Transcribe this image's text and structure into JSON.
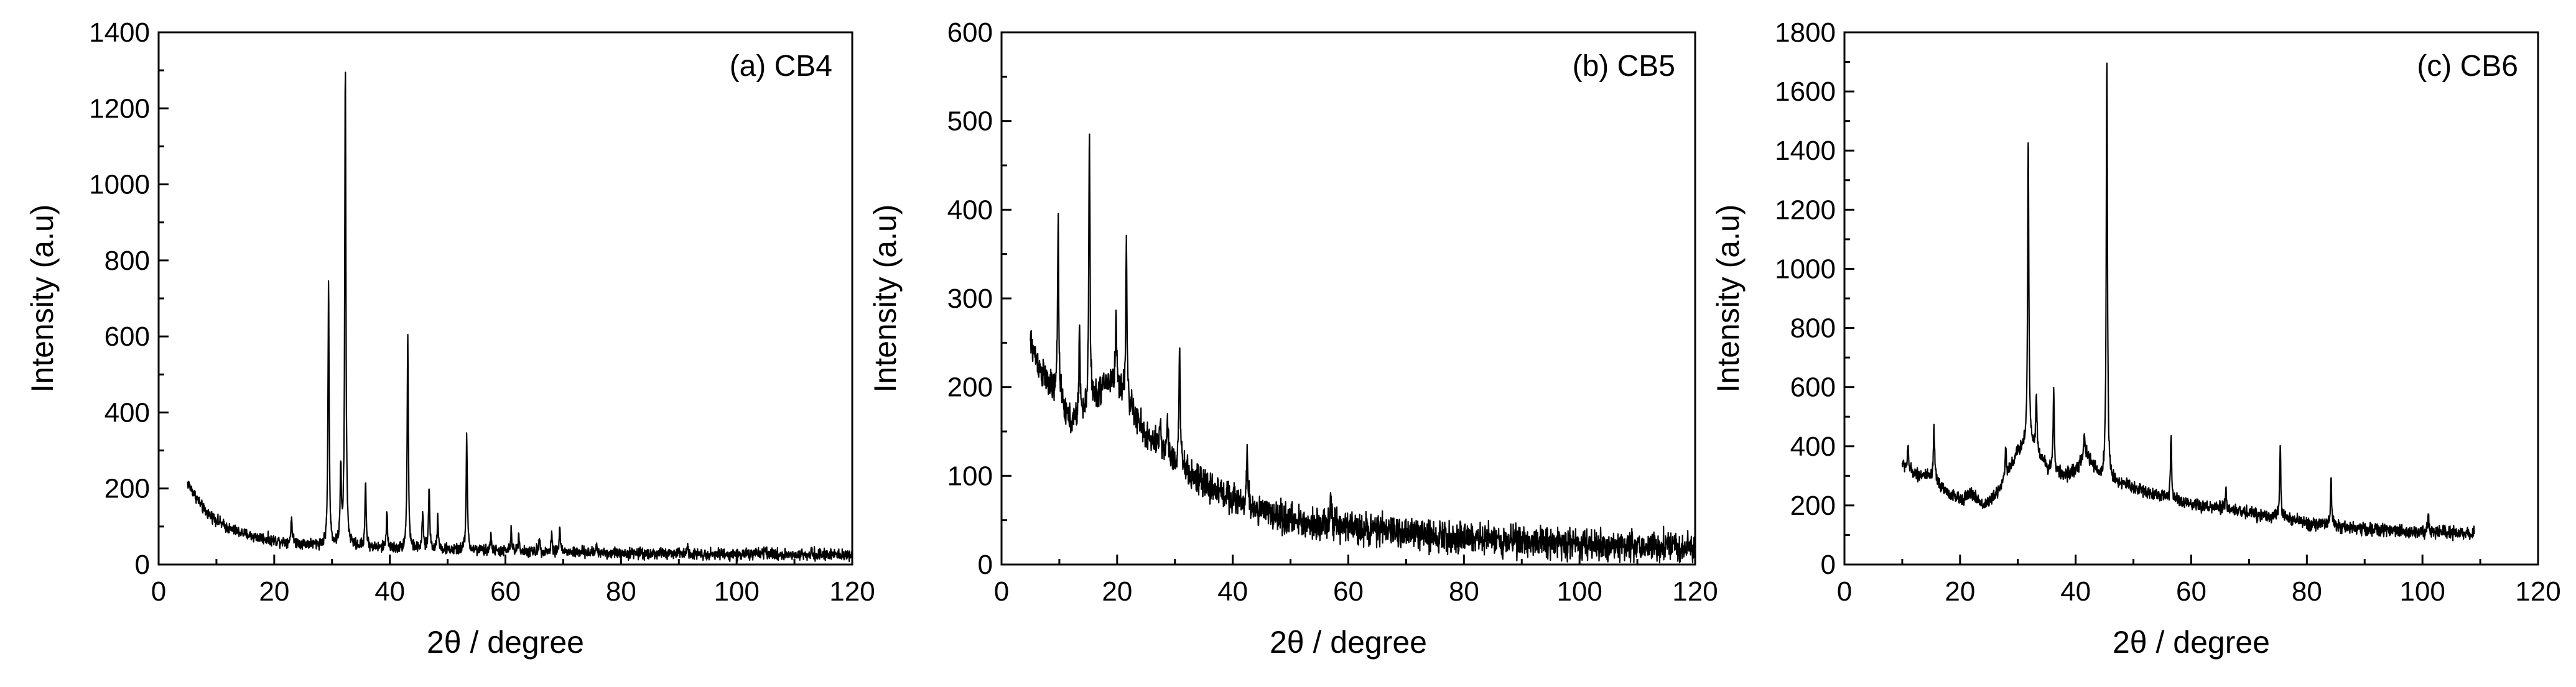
{
  "chart_data": [
    {
      "type": "line",
      "label": "(a) CB4",
      "xlabel": "2θ / degree",
      "ylabel": "Intensity (a.u)",
      "xlim": [
        0,
        120
      ],
      "ylim": [
        0,
        1400
      ],
      "xticks": [
        0,
        20,
        40,
        60,
        80,
        100,
        120
      ],
      "yticks": [
        0,
        200,
        400,
        600,
        800,
        1000,
        1200,
        1400
      ],
      "color": "#000000",
      "baseline": {
        "x": [
          5,
          8,
          12,
          16,
          20,
          25,
          30,
          40,
          60,
          80,
          100,
          120
        ],
        "y": [
          215,
          140,
          95,
          75,
          63,
          55,
          50,
          42,
          35,
          30,
          27,
          25
        ]
      },
      "noise": 12,
      "peaks": [
        {
          "x": 23.0,
          "y": 125
        },
        {
          "x": 29.4,
          "y": 735
        },
        {
          "x": 31.5,
          "y": 250
        },
        {
          "x": 32.3,
          "y": 1320
        },
        {
          "x": 35.8,
          "y": 220
        },
        {
          "x": 39.5,
          "y": 140
        },
        {
          "x": 43.1,
          "y": 610
        },
        {
          "x": 45.7,
          "y": 135
        },
        {
          "x": 46.8,
          "y": 205
        },
        {
          "x": 48.3,
          "y": 130
        },
        {
          "x": 53.3,
          "y": 345
        },
        {
          "x": 57.5,
          "y": 75
        },
        {
          "x": 61.0,
          "y": 90
        },
        {
          "x": 62.3,
          "y": 80
        },
        {
          "x": 65.9,
          "y": 70
        },
        {
          "x": 68.0,
          "y": 80
        },
        {
          "x": 69.4,
          "y": 100
        },
        {
          "x": 75.8,
          "y": 50
        },
        {
          "x": 91.5,
          "y": 55
        },
        {
          "x": 105.0,
          "y": 45
        },
        {
          "x": 113.0,
          "y": 45
        }
      ]
    },
    {
      "type": "line",
      "label": "(b) CB5",
      "xlabel": "2θ / degree",
      "ylabel": "Intensity (a.u)",
      "xlim": [
        0,
        120
      ],
      "ylim": [
        0,
        600
      ],
      "xticks": [
        0,
        20,
        40,
        60,
        80,
        100,
        120
      ],
      "yticks": [
        0,
        100,
        200,
        300,
        400,
        500,
        600
      ],
      "color": "#000000",
      "baseline": {
        "x": [
          5,
          7,
          10,
          12,
          14,
          16,
          18,
          20,
          22,
          25,
          30,
          35,
          40,
          45,
          50,
          60,
          70,
          80,
          90,
          100,
          110,
          120
        ],
        "y": [
          250,
          215,
          185,
          160,
          165,
          185,
          205,
          205,
          180,
          145,
          115,
          90,
          75,
          60,
          50,
          42,
          36,
          30,
          27,
          23,
          21,
          20
        ]
      },
      "noise": 14,
      "peaks": [
        {
          "x": 9.8,
          "y": 395
        },
        {
          "x": 13.5,
          "y": 270
        },
        {
          "x": 15.2,
          "y": 500
        },
        {
          "x": 19.8,
          "y": 280
        },
        {
          "x": 21.6,
          "y": 365
        },
        {
          "x": 27.5,
          "y": 165
        },
        {
          "x": 28.7,
          "y": 170
        },
        {
          "x": 30.8,
          "y": 255
        },
        {
          "x": 42.5,
          "y": 125
        },
        {
          "x": 57.0,
          "y": 75
        }
      ]
    },
    {
      "type": "line",
      "label": "(c) CB6",
      "xlabel": "2θ / degree",
      "ylabel": "Intensity (a.u)",
      "xlim": [
        0,
        120
      ],
      "ylim": [
        0,
        1800
      ],
      "xticks": [
        0,
        20,
        40,
        60,
        80,
        100,
        120
      ],
      "yticks": [
        0,
        200,
        400,
        600,
        800,
        1000,
        1200,
        1400,
        1600,
        1800
      ],
      "color": "#000000",
      "baseline": {
        "x": [
          10,
          12,
          14,
          16,
          18,
          20,
          22,
          24,
          26,
          28,
          30,
          32,
          35,
          38,
          40,
          42,
          44,
          47,
          50,
          55,
          60,
          65,
          70,
          75,
          80,
          90,
          100,
          109
        ],
        "y": [
          340,
          310,
          300,
          280,
          240,
          220,
          240,
          200,
          230,
          300,
          380,
          420,
          330,
          300,
          320,
          370,
          300,
          280,
          260,
          230,
          200,
          190,
          175,
          160,
          140,
          120,
          110,
          105
        ]
      },
      "noise": 18,
      "peaks": [
        {
          "x": 11.0,
          "y": 390
        },
        {
          "x": 15.5,
          "y": 460
        },
        {
          "x": 27.9,
          "y": 400
        },
        {
          "x": 31.8,
          "y": 1440
        },
        {
          "x": 33.2,
          "y": 570
        },
        {
          "x": 36.2,
          "y": 590
        },
        {
          "x": 41.5,
          "y": 440
        },
        {
          "x": 45.4,
          "y": 1735
        },
        {
          "x": 56.5,
          "y": 435
        },
        {
          "x": 66.0,
          "y": 250
        },
        {
          "x": 75.4,
          "y": 395
        },
        {
          "x": 84.2,
          "y": 290
        },
        {
          "x": 101.0,
          "y": 165
        }
      ]
    }
  ]
}
